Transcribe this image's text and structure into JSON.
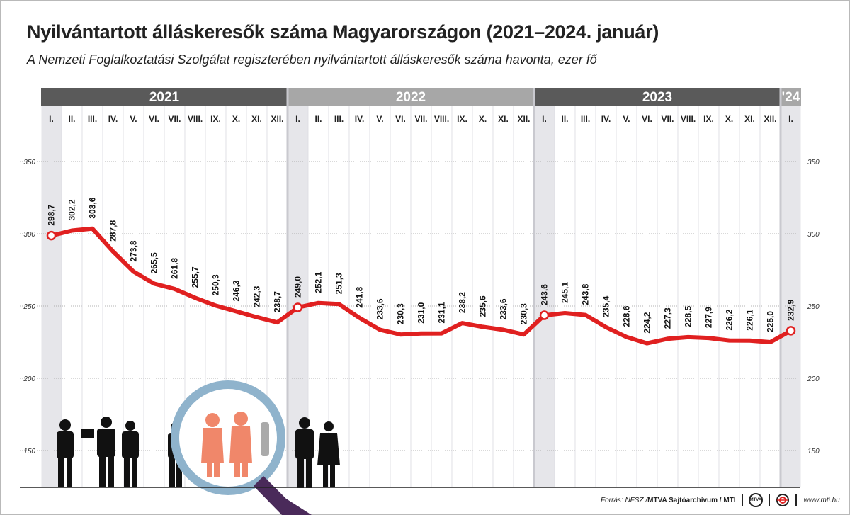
{
  "title": "Nyilvántartott álláskeresők száma Magyarországon (2021–2024. január)",
  "subtitle": "A Nemzeti Foglalkoztatási Szolgálat regiszterében nyilvántartott álláskeresők száma havonta, ezer fő",
  "colors": {
    "line": "#e02020",
    "year_dark": "#5a5a5a",
    "year_light": "#a7a7a7",
    "january_shade": "#e6e6ea"
  },
  "chart_data": {
    "type": "line",
    "years": [
      {
        "label": "2021",
        "months": 12
      },
      {
        "label": "2022",
        "months": 12
      },
      {
        "label": "2023",
        "months": 12
      },
      {
        "label": "'24",
        "months": 1
      }
    ],
    "categories": [
      "I.",
      "II.",
      "III.",
      "IV.",
      "V.",
      "VI.",
      "VII.",
      "VIII.",
      "IX.",
      "X.",
      "XI.",
      "XII.",
      "I.",
      "II.",
      "III.",
      "IV.",
      "V.",
      "VI.",
      "VII.",
      "VIII.",
      "IX.",
      "X.",
      "XI.",
      "XII.",
      "I.",
      "II.",
      "III.",
      "IV.",
      "V.",
      "VI.",
      "VII.",
      "VIII.",
      "IX.",
      "X.",
      "XI.",
      "XII.",
      "I."
    ],
    "values": [
      298.7,
      302.2,
      303.6,
      287.8,
      273.8,
      265.5,
      261.8,
      255.7,
      250.3,
      246.3,
      242.3,
      238.7,
      249.0,
      252.1,
      251.3,
      241.8,
      233.6,
      230.3,
      231.0,
      231.1,
      238.2,
      235.6,
      233.6,
      230.3,
      243.6,
      245.1,
      243.8,
      235.4,
      228.6,
      224.2,
      227.3,
      228.5,
      227.9,
      226.2,
      226.1,
      225.0,
      232.9
    ],
    "labels": [
      "298,7",
      "302,2",
      "303,6",
      "287,8",
      "273,8",
      "265,5",
      "261,8",
      "255,7",
      "250,3",
      "246,3",
      "242,3",
      "238,7",
      "249,0",
      "252,1",
      "251,3",
      "241,8",
      "233,6",
      "230,3",
      "231,0",
      "231,1",
      "238,2",
      "235,6",
      "233,6",
      "230,3",
      "243,6",
      "245,1",
      "243,8",
      "235,4",
      "228,6",
      "224,2",
      "227,3",
      "228,5",
      "227,9",
      "226,2",
      "226,1",
      "225,0",
      "232,9"
    ],
    "y_ticks": [
      150,
      200,
      250,
      300,
      350
    ],
    "ylim": [
      150,
      375
    ],
    "grid": true
  },
  "footer": {
    "source": "Forrás: NFSZ / ",
    "org": "MTVA Sajtóarchívum / MTI",
    "logo1": "MTVA",
    "url": "www.mti.hu"
  }
}
